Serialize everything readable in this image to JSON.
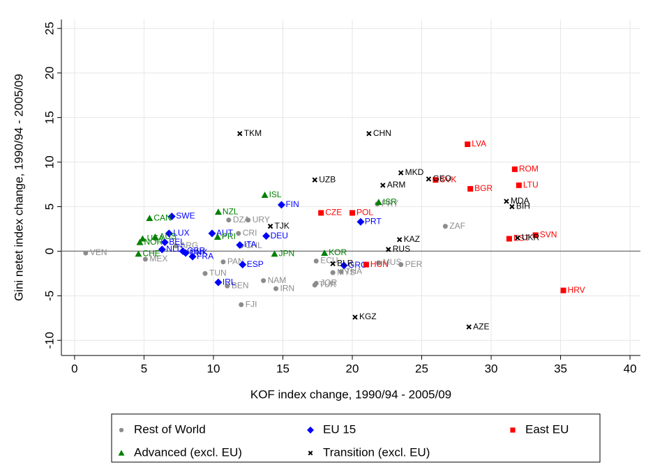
{
  "chart_data": {
    "type": "scatter",
    "x_label": "KOF index change, 1990/94 - 2005/09",
    "y_label": "Gini netet index change, 1990/94 - 2005/09",
    "xlim": [
      -0.95,
      40.75
    ],
    "ylim": [
      -11.7,
      26
    ],
    "xticks": [
      0,
      5,
      10,
      15,
      20,
      25,
      30,
      35,
      40
    ],
    "yticks": [
      -10,
      -5,
      0,
      5,
      10,
      15,
      20,
      25
    ],
    "grid": true,
    "reference_line": 0,
    "legend_position": "bottom",
    "series": [
      {
        "name": "Rest of World",
        "color": "#8c8c8c",
        "marker": "circle",
        "labels": [
          "VEN",
          "MEX",
          "ARG",
          "TUN",
          "PAN",
          "BEN",
          "DZA",
          "CRI",
          "URY",
          "CHL",
          "NAM",
          "IRN",
          "FJI",
          "ECU",
          "JOR",
          "MYS",
          "THA",
          "TUR",
          "PRY",
          "MUS",
          "PER",
          "ZAF"
        ],
        "x": [
          0.8,
          5.1,
          7.3,
          9.4,
          10.7,
          11.0,
          11.1,
          11.8,
          12.5,
          12.0,
          13.6,
          14.5,
          12.0,
          17.4,
          17.4,
          18.6,
          19.2,
          17.3,
          21.8,
          21.9,
          23.5,
          26.7
        ],
        "values": [
          -0.2,
          -0.9,
          0.6,
          -2.5,
          -1.2,
          -3.9,
          3.5,
          2.0,
          3.5,
          0.6,
          -3.3,
          -4.2,
          -6.0,
          -1.1,
          -3.6,
          -2.4,
          -2.3,
          -3.8,
          5.3,
          -1.3,
          -1.5,
          2.8
        ]
      },
      {
        "name": "EU 15",
        "color": "#0000ff",
        "marker": "diamond",
        "labels": [
          "LUX",
          "SWE",
          "BEL",
          "NLD",
          "GBR",
          "FRA",
          "DNK",
          "AUT",
          "ITA",
          "IRL",
          "ESP",
          "DEU",
          "FIN",
          "PRT",
          "GRC"
        ],
        "x": [
          6.8,
          7.0,
          6.5,
          6.3,
          7.8,
          8.5,
          8.0,
          9.9,
          11.9,
          10.35,
          12.1,
          13.8,
          14.9,
          20.6,
          19.4
        ],
        "values": [
          2.0,
          3.9,
          1.0,
          0.2,
          0.0,
          -0.6,
          -0.2,
          2.0,
          0.7,
          -3.5,
          -1.5,
          1.7,
          5.2,
          3.3,
          -1.6
        ]
      },
      {
        "name": "East EU",
        "color": "#ff0000",
        "marker": "square",
        "labels": [
          "CZE",
          "POL",
          "HUN",
          "SVK",
          "LVA",
          "BGR",
          "ROM",
          "LTU",
          "EST",
          "SVN",
          "HRV"
        ],
        "x": [
          17.75,
          20.0,
          21.0,
          26.0,
          28.3,
          28.5,
          31.7,
          32.0,
          31.3,
          33.2,
          35.2
        ],
        "values": [
          4.3,
          4.3,
          -1.5,
          8.0,
          12.0,
          7.0,
          9.2,
          7.4,
          1.4,
          1.8,
          -4.4
        ]
      },
      {
        "name": "Advanced (excl. EU)",
        "color": "#008000",
        "marker": "triangle",
        "labels": [
          "CAN",
          "USA",
          "AUS",
          "NOR",
          "CHE",
          "NZL",
          "PRI",
          "ISL",
          "JPN",
          "KOR",
          "ISR"
        ],
        "x": [
          5.4,
          4.9,
          5.8,
          4.7,
          4.6,
          10.35,
          10.3,
          13.7,
          14.4,
          18.0,
          21.9
        ],
        "values": [
          3.7,
          1.4,
          1.6,
          1.0,
          -0.3,
          4.4,
          1.6,
          6.3,
          -0.3,
          -0.2,
          5.5
        ]
      },
      {
        "name": "Transition (excl. EU)",
        "color": "#000000",
        "marker": "x",
        "labels": [
          "TKM",
          "CHN",
          "UZB",
          "MKD",
          "ARM",
          "GEO",
          "MDA",
          "BIH",
          "TJK",
          "KAZ",
          "RUS",
          "UKR",
          "BLR",
          "KGZ",
          "AZE"
        ],
        "x": [
          11.9,
          21.2,
          17.3,
          23.5,
          22.2,
          25.5,
          31.1,
          31.5,
          14.1,
          23.4,
          22.6,
          31.9,
          18.6,
          20.2,
          28.4
        ],
        "values": [
          13.2,
          13.2,
          8.0,
          8.8,
          7.4,
          8.1,
          5.6,
          5.0,
          2.8,
          1.3,
          0.2,
          1.5,
          -1.4,
          -7.4,
          -8.5
        ]
      }
    ]
  }
}
